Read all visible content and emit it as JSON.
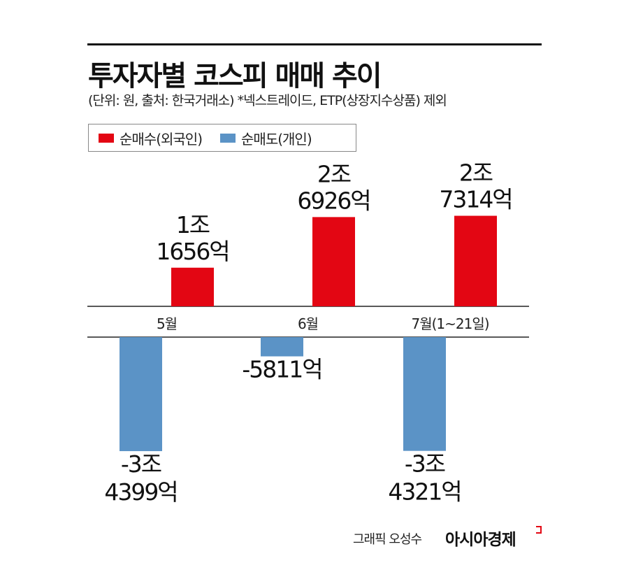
{
  "title": "투자자별 코스피 매매 추이",
  "subtitle": "(단위: 원, 출처: 한국거래소) *넥스트레이드, ETP(상장지수상품) 제외",
  "credit": "그래픽 오성수",
  "brand": "아시아경제",
  "chart_data": {
    "type": "bar",
    "title": "투자자별 코스피 매매 추이",
    "unit": "억 원",
    "categories": [
      "5월",
      "6월",
      "7월(1~21일)"
    ],
    "series": [
      {
        "name": "순매수(외국인)",
        "color": "#e30613",
        "values": [
          11656,
          26926,
          27314
        ],
        "labels": [
          [
            "1조",
            "1656억"
          ],
          [
            "2조",
            "6926억"
          ],
          [
            "2조",
            "7314억"
          ]
        ]
      },
      {
        "name": "순매도(개인)",
        "color": "#5b93c6",
        "values": [
          -34399,
          -5811,
          -34321
        ],
        "labels": [
          [
            "-3조",
            "4399억"
          ],
          [
            "-5811억"
          ],
          [
            "-3조",
            "4321억"
          ]
        ]
      }
    ],
    "legend": "top-left",
    "grid": false
  }
}
